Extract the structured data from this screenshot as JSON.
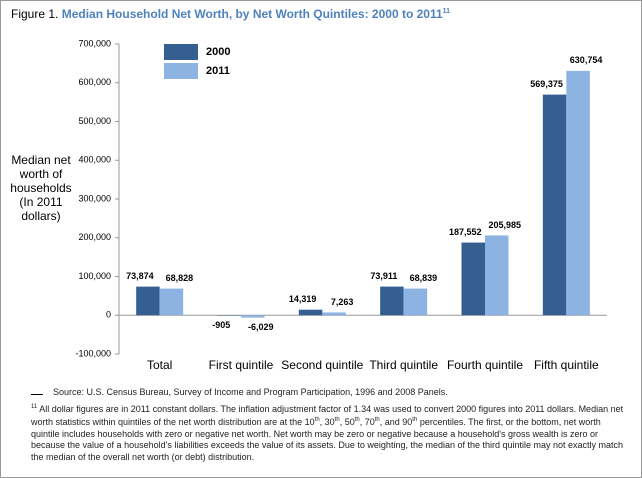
{
  "chart_data": {
    "type": "bar",
    "figure_label": "Figure 1.",
    "title": "Median Household Net Worth, by Net Worth Quintiles: 2000 to 2011",
    "title_note": "11",
    "ylabel": [
      "Median net",
      "worth of",
      "households",
      "(In 2011",
      "dollars)"
    ],
    "categories": [
      "Total",
      "First quintile",
      "Second quintile",
      "Third quintile",
      "Fourth quintile",
      "Fifth quintile"
    ],
    "series": [
      {
        "name": "2000",
        "color": "#365f91",
        "label_color": "#1f3864",
        "values": [
          73874,
          -905,
          14319,
          73911,
          187552,
          569375
        ],
        "value_labels": [
          "73,874",
          "-905",
          "14,319",
          "73,911",
          "187,552",
          "569,375"
        ]
      },
      {
        "name": "2011",
        "color": "#8db3e2",
        "label_color": "#4f81bd",
        "values": [
          68828,
          -6029,
          7263,
          68839,
          205985,
          630754
        ],
        "value_labels": [
          "68,828",
          "-6,029",
          "7,263",
          "68,839",
          "205,985",
          "630,754"
        ]
      }
    ],
    "ylim": [
      -100000,
      700000
    ],
    "yticks": [
      {
        "value": -100000,
        "label": "-100,000"
      },
      0,
      {
        "value": 100000,
        "label": "100,000"
      },
      {
        "value": 200000,
        "label": "200,000"
      },
      {
        "value": 300000,
        "label": "300,000"
      },
      {
        "value": 400000,
        "label": "400,000"
      },
      {
        "value": 500000,
        "label": "500,000"
      },
      {
        "value": 600000,
        "label": "600,000"
      },
      {
        "value": 700000,
        "label": "700,000"
      }
    ],
    "grid": false,
    "legend": "top-left",
    "source": "Source: U.S. Census Bureau, Survey of Income and Program Participation, 1996 and 2008 Panels.",
    "footnote_number": "11",
    "footnote": [
      "All dollar figures are in 2011 constant dollars. The inflation adjustment factor of 1.34 was used to convert 2000 figures into 2011 dollars. Median net worth statistics within quintiles of the net worth distribution are at the 10",
      "th",
      ", 30",
      "th",
      ", 50",
      "th",
      ", 70",
      "th",
      ", and 90",
      "th",
      " percentiles. The first, or the bottom, net worth quintile includes households with zero or negative net worth. Net worth may be zero or negative because a household's gross wealth is zero or because the value of a household's liabilities exceeds the value of its assets. Due to weighting, the median of the third quintile may not exactly match the median of the overall net worth (or debt) distribution."
    ]
  }
}
